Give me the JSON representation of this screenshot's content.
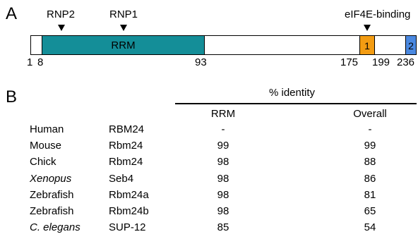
{
  "panel_a": {
    "label": "A",
    "motifs": {
      "rnp2": "RNP2",
      "rnp1": "RNP1",
      "eif4e": "eIF4E-binding"
    },
    "domains": {
      "rrm": "RRM",
      "box1": "1",
      "box2": "2"
    },
    "colors": {
      "rrm": "#148e98",
      "box1": "#f39c12",
      "box2": "#4a88e0",
      "outline": "#000000"
    },
    "positions": {
      "p1": "1",
      "p8": "8",
      "p93": "93",
      "p175": "175",
      "p199": "199",
      "p236": "236"
    }
  },
  "panel_b": {
    "label": "B",
    "header": "% identity",
    "columns": {
      "rrm": "RRM",
      "overall": "Overall"
    },
    "rows": [
      {
        "species": "Human",
        "italic": false,
        "gene": "RBM24",
        "rrm": "-",
        "overall": "-"
      },
      {
        "species": "Mouse",
        "italic": false,
        "gene": "Rbm24",
        "rrm": "99",
        "overall": "99"
      },
      {
        "species": "Chick",
        "italic": false,
        "gene": "Rbm24",
        "rrm": "98",
        "overall": "88"
      },
      {
        "species": "Xenopus",
        "italic": true,
        "gene": "Seb4",
        "rrm": "98",
        "overall": "86"
      },
      {
        "species": "Zebrafish",
        "italic": false,
        "gene": "Rbm24a",
        "rrm": "98",
        "overall": "81"
      },
      {
        "species": "Zebrafish",
        "italic": false,
        "gene": "Rbm24b",
        "rrm": "98",
        "overall": "65"
      },
      {
        "species": "C. elegans",
        "italic": true,
        "gene": "SUP-12",
        "rrm": "85",
        "overall": "54"
      }
    ]
  }
}
